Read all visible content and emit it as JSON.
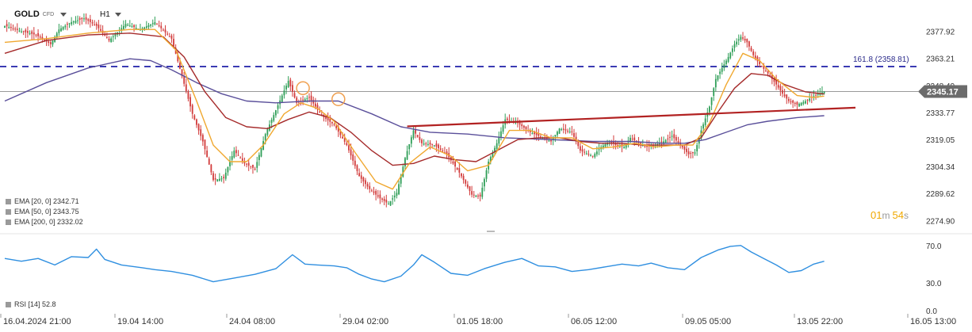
{
  "header": {
    "symbol": "GOLD",
    "symbol_type": "CFD",
    "timeframe": "H1"
  },
  "colors": {
    "up": "#2e9e57",
    "down": "#d23b3b",
    "ema20": "#f0a830",
    "ema50": "#a52a2a",
    "ema200": "#5a4f9a",
    "fib": "#3b3bb3",
    "resistance": "#b22222",
    "rsi": "#2f8fe0",
    "price_tag": "#6b6b6b",
    "timer": "#f0a800"
  },
  "indicators": [
    {
      "label": "EMA [20, 0]",
      "value": "2342.71"
    },
    {
      "label": "EMA [50, 0]",
      "value": "2343.75"
    },
    {
      "label": "EMA [200, 0]",
      "value": "2332.02"
    }
  ],
  "rsi_indicator": {
    "label": "RSI [14]",
    "value": "52.8"
  },
  "timer": {
    "minutes": "01",
    "minutes_unit": "m",
    "seconds": "54",
    "seconds_unit": "s"
  },
  "chart_data": {
    "type": "candlestick",
    "price_axis": {
      "min": 2269,
      "max": 2389,
      "ticks": [
        "2377.92",
        "2363.21",
        "2348.49",
        "2333.77",
        "2319.05",
        "2304.34",
        "2289.62",
        "2274.90"
      ]
    },
    "current_price": "2345.17",
    "fib_level": {
      "label": "161.8 (2358.81)",
      "value": 2358.81
    },
    "time_ticks": [
      "16.04.2024 21:00",
      "19.04 14:00",
      "24.04 08:00",
      "29.04 02:00",
      "01.05 18:00",
      "06.05 12:00",
      "09.05 05:00",
      "13.05 22:00",
      "16.05 13:00"
    ],
    "price_path": [
      [
        0,
        2381
      ],
      [
        8,
        2378
      ],
      [
        15,
        2376
      ],
      [
        22,
        2371
      ],
      [
        26,
        2379
      ],
      [
        32,
        2383
      ],
      [
        38,
        2385
      ],
      [
        44,
        2381
      ],
      [
        50,
        2373
      ],
      [
        58,
        2382
      ],
      [
        65,
        2379
      ],
      [
        72,
        2383
      ],
      [
        80,
        2374
      ],
      [
        90,
        2333
      ],
      [
        95,
        2318
      ],
      [
        100,
        2297
      ],
      [
        105,
        2298
      ],
      [
        110,
        2313
      ],
      [
        115,
        2306
      ],
      [
        120,
        2303
      ],
      [
        125,
        2322
      ],
      [
        130,
        2335
      ],
      [
        136,
        2351
      ],
      [
        140,
        2339
      ],
      [
        146,
        2342
      ],
      [
        152,
        2332
      ],
      [
        158,
        2327
      ],
      [
        164,
        2316
      ],
      [
        170,
        2299
      ],
      [
        175,
        2292
      ],
      [
        180,
        2287
      ],
      [
        184,
        2284
      ],
      [
        188,
        2290
      ],
      [
        192,
        2309
      ],
      [
        196,
        2324
      ],
      [
        200,
        2317
      ],
      [
        206,
        2316
      ],
      [
        212,
        2311
      ],
      [
        218,
        2301
      ],
      [
        224,
        2289
      ],
      [
        228,
        2288
      ],
      [
        232,
        2307
      ],
      [
        236,
        2317
      ],
      [
        240,
        2330
      ],
      [
        246,
        2328
      ],
      [
        252,
        2323
      ],
      [
        258,
        2320
      ],
      [
        262,
        2318
      ],
      [
        266,
        2325
      ],
      [
        272,
        2323
      ],
      [
        276,
        2313
      ],
      [
        282,
        2310
      ],
      [
        286,
        2315
      ],
      [
        290,
        2318
      ],
      [
        293,
        2316
      ],
      [
        297,
        2315
      ],
      [
        300,
        2320
      ],
      [
        304,
        2317
      ],
      [
        308,
        2315
      ],
      [
        312,
        2316
      ],
      [
        316,
        2318
      ],
      [
        320,
        2321
      ],
      [
        324,
        2316
      ],
      [
        328,
        2311
      ],
      [
        331,
        2312
      ],
      [
        334,
        2324
      ],
      [
        338,
        2337
      ],
      [
        341,
        2352
      ],
      [
        344,
        2358
      ],
      [
        347,
        2364
      ],
      [
        350,
        2371
      ],
      [
        353,
        2375
      ],
      [
        356,
        2372
      ],
      [
        359,
        2365
      ],
      [
        362,
        2360
      ],
      [
        366,
        2355
      ],
      [
        370,
        2349
      ],
      [
        373,
        2344
      ],
      [
        376,
        2340
      ],
      [
        380,
        2338
      ],
      [
        384,
        2340
      ],
      [
        387,
        2342
      ],
      [
        390,
        2344
      ],
      [
        393,
        2345.17
      ]
    ],
    "ema20_path": [
      [
        0,
        2372
      ],
      [
        20,
        2374
      ],
      [
        40,
        2377
      ],
      [
        60,
        2379
      ],
      [
        72,
        2379
      ],
      [
        82,
        2368
      ],
      [
        92,
        2340
      ],
      [
        100,
        2316
      ],
      [
        108,
        2307
      ],
      [
        116,
        2307
      ],
      [
        124,
        2316
      ],
      [
        134,
        2333
      ],
      [
        142,
        2339
      ],
      [
        150,
        2336
      ],
      [
        158,
        2329
      ],
      [
        168,
        2312
      ],
      [
        178,
        2296
      ],
      [
        186,
        2292
      ],
      [
        194,
        2306
      ],
      [
        204,
        2315
      ],
      [
        214,
        2310
      ],
      [
        222,
        2302
      ],
      [
        232,
        2305
      ],
      [
        242,
        2324
      ],
      [
        252,
        2324
      ],
      [
        262,
        2320
      ],
      [
        272,
        2320
      ],
      [
        282,
        2314
      ],
      [
        292,
        2315
      ],
      [
        302,
        2317
      ],
      [
        312,
        2315
      ],
      [
        322,
        2316
      ],
      [
        330,
        2316
      ],
      [
        338,
        2328
      ],
      [
        346,
        2349
      ],
      [
        354,
        2366
      ],
      [
        362,
        2362
      ],
      [
        370,
        2352
      ],
      [
        380,
        2343
      ],
      [
        388,
        2342
      ],
      [
        393,
        2342.7
      ]
    ],
    "ema50_path": [
      [
        0,
        2366
      ],
      [
        20,
        2373
      ],
      [
        40,
        2376
      ],
      [
        60,
        2377
      ],
      [
        76,
        2375
      ],
      [
        86,
        2364
      ],
      [
        96,
        2345
      ],
      [
        106,
        2331
      ],
      [
        116,
        2326
      ],
      [
        126,
        2325
      ],
      [
        136,
        2330
      ],
      [
        146,
        2334
      ],
      [
        156,
        2331
      ],
      [
        166,
        2323
      ],
      [
        176,
        2313
      ],
      [
        186,
        2305
      ],
      [
        196,
        2306
      ],
      [
        206,
        2310
      ],
      [
        216,
        2308
      ],
      [
        226,
        2307
      ],
      [
        236,
        2313
      ],
      [
        246,
        2319
      ],
      [
        256,
        2320
      ],
      [
        266,
        2320
      ],
      [
        276,
        2318
      ],
      [
        286,
        2317
      ],
      [
        296,
        2317
      ],
      [
        306,
        2316
      ],
      [
        316,
        2316
      ],
      [
        326,
        2316
      ],
      [
        334,
        2320
      ],
      [
        342,
        2334
      ],
      [
        350,
        2347
      ],
      [
        358,
        2355
      ],
      [
        366,
        2354
      ],
      [
        374,
        2349
      ],
      [
        384,
        2345
      ],
      [
        393,
        2343.8
      ]
    ],
    "ema200_path": [
      [
        0,
        2340
      ],
      [
        20,
        2350
      ],
      [
        40,
        2358
      ],
      [
        60,
        2363
      ],
      [
        70,
        2362
      ],
      [
        80,
        2357
      ],
      [
        92,
        2350
      ],
      [
        104,
        2344
      ],
      [
        116,
        2340
      ],
      [
        130,
        2339
      ],
      [
        146,
        2340
      ],
      [
        160,
        2340
      ],
      [
        176,
        2333
      ],
      [
        190,
        2326
      ],
      [
        204,
        2323
      ],
      [
        222,
        2322
      ],
      [
        240,
        2320
      ],
      [
        262,
        2319
      ],
      [
        282,
        2318
      ],
      [
        300,
        2318
      ],
      [
        316,
        2317
      ],
      [
        326,
        2317
      ],
      [
        336,
        2319
      ],
      [
        346,
        2323
      ],
      [
        356,
        2327
      ],
      [
        366,
        2329
      ],
      [
        380,
        2331
      ],
      [
        393,
        2332
      ]
    ],
    "resistance_line": [
      [
        193,
        2326.2
      ],
      [
        408,
        2336.4
      ]
    ],
    "circles": [
      [
        143,
        2347
      ],
      [
        160,
        2341
      ]
    ],
    "rsi_axis": {
      "min": 0,
      "max": 80,
      "ticks": [
        "70.0",
        "30.0",
        "0.0"
      ]
    },
    "rsi_path": [
      [
        0,
        56
      ],
      [
        8,
        53
      ],
      [
        16,
        56
      ],
      [
        24,
        49
      ],
      [
        32,
        58
      ],
      [
        40,
        57
      ],
      [
        44,
        66
      ],
      [
        48,
        55
      ],
      [
        56,
        49
      ],
      [
        66,
        46
      ],
      [
        72,
        44
      ],
      [
        80,
        42
      ],
      [
        90,
        38
      ],
      [
        100,
        31
      ],
      [
        110,
        35
      ],
      [
        120,
        39
      ],
      [
        130,
        45
      ],
      [
        138,
        60
      ],
      [
        144,
        50
      ],
      [
        150,
        49
      ],
      [
        158,
        48
      ],
      [
        164,
        46
      ],
      [
        170,
        39
      ],
      [
        176,
        34
      ],
      [
        182,
        31
      ],
      [
        190,
        37
      ],
      [
        196,
        49
      ],
      [
        200,
        60
      ],
      [
        206,
        52
      ],
      [
        214,
        40
      ],
      [
        222,
        38
      ],
      [
        230,
        45
      ],
      [
        240,
        52
      ],
      [
        248,
        56
      ],
      [
        256,
        48
      ],
      [
        264,
        47
      ],
      [
        272,
        42
      ],
      [
        280,
        44
      ],
      [
        288,
        47
      ],
      [
        296,
        50
      ],
      [
        304,
        48
      ],
      [
        310,
        51
      ],
      [
        318,
        46
      ],
      [
        326,
        44
      ],
      [
        334,
        57
      ],
      [
        342,
        65
      ],
      [
        348,
        69
      ],
      [
        353,
        70
      ],
      [
        358,
        63
      ],
      [
        364,
        56
      ],
      [
        370,
        49
      ],
      [
        376,
        41
      ],
      [
        382,
        43
      ],
      [
        388,
        50
      ],
      [
        393,
        53
      ]
    ]
  }
}
